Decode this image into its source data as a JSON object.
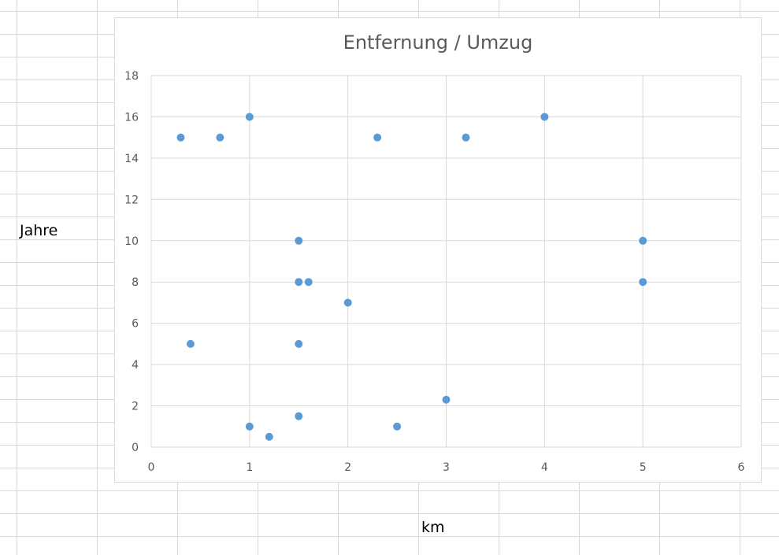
{
  "sheet": {
    "label_left": "Jahre",
    "label_bottom": "km"
  },
  "chart_data": {
    "type": "scatter",
    "title": "Entfernung / Umzug",
    "xlabel": "",
    "ylabel": "",
    "xlim": [
      0,
      6
    ],
    "ylim": [
      0,
      18
    ],
    "xticks": [
      0,
      1,
      2,
      3,
      4,
      5,
      6
    ],
    "yticks": [
      0,
      2,
      4,
      6,
      8,
      10,
      12,
      14,
      16,
      18
    ],
    "grid": true,
    "legend": "none",
    "marker_color": "#5b9bd5",
    "grid_color": "#d9d9d9",
    "points": [
      {
        "x": 0.3,
        "y": 15
      },
      {
        "x": 0.7,
        "y": 15
      },
      {
        "x": 1.0,
        "y": 16
      },
      {
        "x": 2.3,
        "y": 15
      },
      {
        "x": 3.2,
        "y": 15
      },
      {
        "x": 4.0,
        "y": 16
      },
      {
        "x": 1.5,
        "y": 10
      },
      {
        "x": 5.0,
        "y": 10
      },
      {
        "x": 1.5,
        "y": 8
      },
      {
        "x": 1.6,
        "y": 8
      },
      {
        "x": 5.0,
        "y": 8
      },
      {
        "x": 2.0,
        "y": 7
      },
      {
        "x": 0.4,
        "y": 5
      },
      {
        "x": 1.5,
        "y": 5
      },
      {
        "x": 3.0,
        "y": 2.3
      },
      {
        "x": 1.5,
        "y": 1.5
      },
      {
        "x": 1.0,
        "y": 1
      },
      {
        "x": 2.5,
        "y": 1
      },
      {
        "x": 1.2,
        "y": 0.5
      }
    ]
  }
}
